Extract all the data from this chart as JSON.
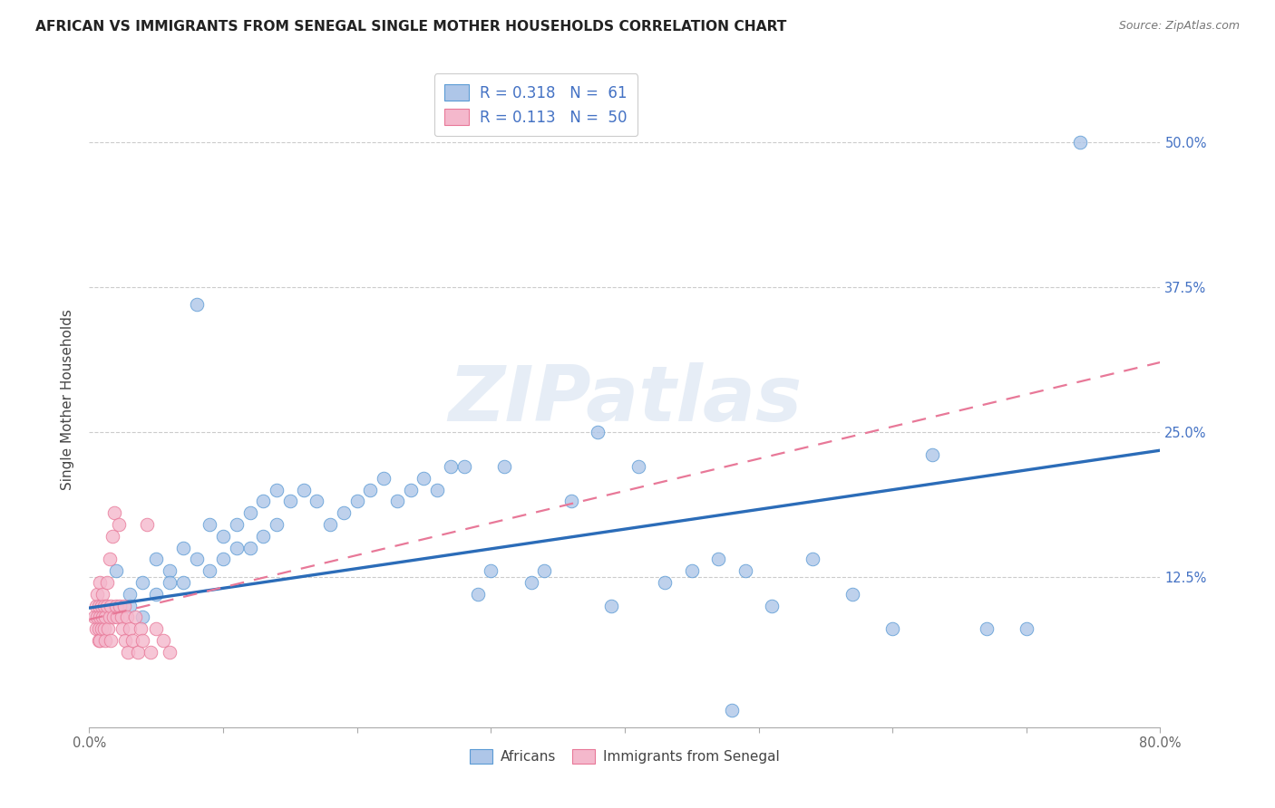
{
  "title": "AFRICAN VS IMMIGRANTS FROM SENEGAL SINGLE MOTHER HOUSEHOLDS CORRELATION CHART",
  "source": "Source: ZipAtlas.com",
  "ylabel": "Single Mother Households",
  "xlim": [
    0.0,
    0.8
  ],
  "ylim": [
    -0.005,
    0.56
  ],
  "xticks": [
    0.0,
    0.1,
    0.2,
    0.3,
    0.4,
    0.5,
    0.6,
    0.7,
    0.8
  ],
  "xticklabels": [
    "0.0%",
    "",
    "",
    "",
    "",
    "",
    "",
    "",
    "80.0%"
  ],
  "yticks": [
    0.0,
    0.125,
    0.25,
    0.375,
    0.5
  ],
  "yticklabels": [
    "",
    "12.5%",
    "25.0%",
    "37.5%",
    "50.0%"
  ],
  "R_african": "0.318",
  "N_african": "61",
  "R_senegal": "0.113",
  "N_senegal": "50",
  "blue_fill": "#aec6e8",
  "blue_edge": "#5b9bd5",
  "pink_fill": "#f4b8cc",
  "pink_edge": "#e87898",
  "blue_line_color": "#2b6cb8",
  "pink_line_color": "#e87898",
  "legend_text_color": "#4472c4",
  "legend_african": "Africans",
  "legend_senegal": "Immigrants from Senegal",
  "watermark": "ZIPatlas",
  "africans_x": [
    0.74,
    0.02,
    0.03,
    0.03,
    0.04,
    0.04,
    0.05,
    0.05,
    0.06,
    0.06,
    0.07,
    0.07,
    0.08,
    0.08,
    0.09,
    0.09,
    0.1,
    0.1,
    0.11,
    0.11,
    0.12,
    0.12,
    0.13,
    0.13,
    0.14,
    0.14,
    0.15,
    0.16,
    0.17,
    0.18,
    0.19,
    0.2,
    0.21,
    0.22,
    0.23,
    0.24,
    0.25,
    0.26,
    0.27,
    0.28,
    0.29,
    0.3,
    0.31,
    0.33,
    0.34,
    0.36,
    0.38,
    0.39,
    0.41,
    0.43,
    0.45,
    0.47,
    0.49,
    0.51,
    0.54,
    0.57,
    0.6,
    0.63,
    0.67,
    0.7,
    0.48
  ],
  "africans_y": [
    0.5,
    0.13,
    0.11,
    0.1,
    0.12,
    0.09,
    0.14,
    0.11,
    0.13,
    0.12,
    0.15,
    0.12,
    0.36,
    0.14,
    0.13,
    0.17,
    0.16,
    0.14,
    0.17,
    0.15,
    0.18,
    0.15,
    0.19,
    0.16,
    0.2,
    0.17,
    0.19,
    0.2,
    0.19,
    0.17,
    0.18,
    0.19,
    0.2,
    0.21,
    0.19,
    0.2,
    0.21,
    0.2,
    0.22,
    0.22,
    0.11,
    0.13,
    0.22,
    0.12,
    0.13,
    0.19,
    0.25,
    0.1,
    0.22,
    0.12,
    0.13,
    0.14,
    0.13,
    0.1,
    0.14,
    0.11,
    0.08,
    0.23,
    0.08,
    0.08,
    0.01
  ],
  "senegal_x": [
    0.004,
    0.005,
    0.005,
    0.006,
    0.006,
    0.007,
    0.007,
    0.007,
    0.008,
    0.008,
    0.008,
    0.009,
    0.009,
    0.01,
    0.01,
    0.011,
    0.011,
    0.012,
    0.012,
    0.013,
    0.013,
    0.014,
    0.015,
    0.015,
    0.016,
    0.016,
    0.017,
    0.018,
    0.019,
    0.02,
    0.021,
    0.022,
    0.023,
    0.024,
    0.025,
    0.026,
    0.027,
    0.028,
    0.029,
    0.03,
    0.032,
    0.034,
    0.036,
    0.038,
    0.04,
    0.043,
    0.046,
    0.05,
    0.055,
    0.06
  ],
  "senegal_y": [
    0.09,
    0.1,
    0.08,
    0.11,
    0.09,
    0.1,
    0.08,
    0.07,
    0.12,
    0.09,
    0.07,
    0.1,
    0.08,
    0.11,
    0.09,
    0.1,
    0.08,
    0.09,
    0.07,
    0.12,
    0.1,
    0.08,
    0.14,
    0.09,
    0.07,
    0.1,
    0.16,
    0.09,
    0.18,
    0.1,
    0.09,
    0.17,
    0.1,
    0.09,
    0.08,
    0.1,
    0.07,
    0.09,
    0.06,
    0.08,
    0.07,
    0.09,
    0.06,
    0.08,
    0.07,
    0.17,
    0.06,
    0.08,
    0.07,
    0.06
  ],
  "trend_african_x0": 0.0,
  "trend_african_x1": 0.8,
  "trend_african_y0": 0.098,
  "trend_african_y1": 0.234,
  "trend_senegal_x0": 0.0,
  "trend_senegal_x1": 0.8,
  "trend_senegal_y0": 0.088,
  "trend_senegal_y1": 0.31
}
